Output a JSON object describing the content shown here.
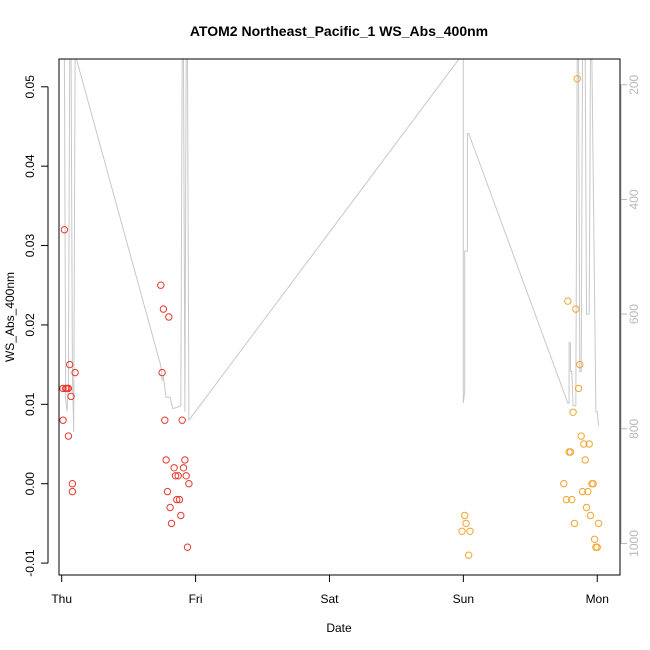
{
  "chart_data": {
    "type": "scatter",
    "title": "ATOM2 Northeast_Pacific_1 WS_Abs_400nm",
    "xlabel": "Date",
    "ylabel": "WS_Abs_400nm",
    "x_ticks": [
      "Thu",
      "Fri",
      "Sat",
      "Sun",
      "Mon"
    ],
    "y_ticks": [
      "-0.01",
      "0.00",
      "0.01",
      "0.02",
      "0.03",
      "0.04",
      "0.05"
    ],
    "y_tick_values": [
      -0.01,
      0.0,
      0.01,
      0.02,
      0.03,
      0.04,
      0.05
    ],
    "right_ticks": [
      "200",
      "400",
      "600",
      "800",
      "1000"
    ],
    "right_tick_values": [
      200,
      400,
      600,
      800,
      1000
    ],
    "xlim": [
      -0.02,
      4.17
    ],
    "ylim": [
      -0.0115,
      0.0535
    ],
    "right_ylim": [
      1055,
      155
    ],
    "grid": false,
    "colors": {
      "series_red": "#e8382f",
      "series_orange": "#f4a530",
      "altitude_line": "#c8c8c8",
      "axis": "#000000",
      "right_axis_text": "#b8b8b8"
    },
    "series": [
      {
        "color": "#e8382f",
        "points": [
          [
            0.01,
            0.012
          ],
          [
            0.01,
            0.008
          ],
          [
            0.02,
            0.032
          ],
          [
            0.03,
            0.012
          ],
          [
            0.04,
            0.012
          ],
          [
            0.05,
            0.012
          ],
          [
            0.05,
            0.006
          ],
          [
            0.06,
            0.015
          ],
          [
            0.07,
            0.011
          ],
          [
            0.08,
            0.0
          ],
          [
            0.08,
            -0.001
          ],
          [
            0.1,
            0.014
          ],
          [
            0.74,
            0.025
          ],
          [
            0.75,
            0.014
          ],
          [
            0.76,
            0.022
          ],
          [
            0.77,
            0.008
          ],
          [
            0.78,
            0.003
          ],
          [
            0.79,
            -0.001
          ],
          [
            0.8,
            0.021
          ],
          [
            0.81,
            -0.003
          ],
          [
            0.82,
            -0.005
          ],
          [
            0.84,
            0.002
          ],
          [
            0.85,
            0.001
          ],
          [
            0.86,
            -0.002
          ],
          [
            0.87,
            0.001
          ],
          [
            0.88,
            -0.002
          ],
          [
            0.89,
            -0.004
          ],
          [
            0.9,
            0.008
          ],
          [
            0.91,
            0.002
          ],
          [
            0.92,
            0.003
          ],
          [
            0.93,
            0.001
          ],
          [
            0.94,
            -0.008
          ],
          [
            0.95,
            0.0
          ]
        ]
      },
      {
        "color": "#f4a530",
        "points": [
          [
            2.99,
            -0.006
          ],
          [
            3.01,
            -0.004
          ],
          [
            3.02,
            -0.005
          ],
          [
            3.04,
            -0.009
          ],
          [
            3.05,
            -0.006
          ],
          [
            3.75,
            0.0
          ],
          [
            3.77,
            -0.002
          ],
          [
            3.78,
            0.023
          ],
          [
            3.79,
            0.004
          ],
          [
            3.8,
            0.004
          ],
          [
            3.81,
            -0.002
          ],
          [
            3.82,
            0.009
          ],
          [
            3.83,
            -0.005
          ],
          [
            3.84,
            0.022
          ],
          [
            3.85,
            0.051
          ],
          [
            3.86,
            0.012
          ],
          [
            3.87,
            0.015
          ],
          [
            3.88,
            0.006
          ],
          [
            3.89,
            -0.001
          ],
          [
            3.9,
            0.005
          ],
          [
            3.91,
            0.003
          ],
          [
            3.92,
            -0.003
          ],
          [
            3.93,
            -0.001
          ],
          [
            3.94,
            0.005
          ],
          [
            3.95,
            -0.004
          ],
          [
            3.96,
            0.0
          ],
          [
            3.97,
            0.0
          ],
          [
            3.98,
            -0.007
          ],
          [
            3.99,
            -0.008
          ],
          [
            4.0,
            -0.008
          ],
          [
            4.01,
            -0.005
          ]
        ]
      }
    ],
    "altitude_line": [
      [
        0.02,
        155
      ],
      [
        0.03,
        750
      ],
      [
        0.04,
        770
      ],
      [
        0.05,
        720
      ],
      [
        0.06,
        155
      ],
      [
        0.07,
        155
      ],
      [
        0.08,
        700
      ],
      [
        0.09,
        805
      ],
      [
        0.1,
        155
      ],
      [
        0.11,
        155
      ],
      [
        0.74,
        690
      ],
      [
        0.75,
        715
      ],
      [
        0.76,
        710
      ],
      [
        0.78,
        745
      ],
      [
        0.81,
        745
      ],
      [
        0.83,
        765
      ],
      [
        0.89,
        760
      ],
      [
        0.9,
        155
      ],
      [
        0.91,
        155
      ],
      [
        0.92,
        770
      ],
      [
        0.93,
        155
      ],
      [
        0.94,
        155
      ],
      [
        0.95,
        785
      ],
      [
        3.0,
        145
      ],
      [
        3.0,
        755
      ],
      [
        3.01,
        735
      ],
      [
        3.01,
        490
      ],
      [
        3.03,
        490
      ],
      [
        3.03,
        285
      ],
      [
        3.04,
        285
      ],
      [
        3.78,
        755
      ],
      [
        3.79,
        755
      ],
      [
        3.79,
        650
      ],
      [
        3.8,
        650
      ],
      [
        3.8,
        700
      ],
      [
        3.81,
        700
      ],
      [
        3.82,
        760
      ],
      [
        3.84,
        760
      ],
      [
        3.85,
        155
      ],
      [
        3.86,
        155
      ],
      [
        3.87,
        700
      ],
      [
        3.88,
        700
      ],
      [
        3.89,
        155
      ],
      [
        3.91,
        155
      ],
      [
        3.92,
        600
      ],
      [
        3.94,
        600
      ],
      [
        3.95,
        155
      ],
      [
        3.96,
        155
      ],
      [
        3.99,
        770
      ],
      [
        4.0,
        770
      ],
      [
        4.01,
        795
      ]
    ]
  }
}
